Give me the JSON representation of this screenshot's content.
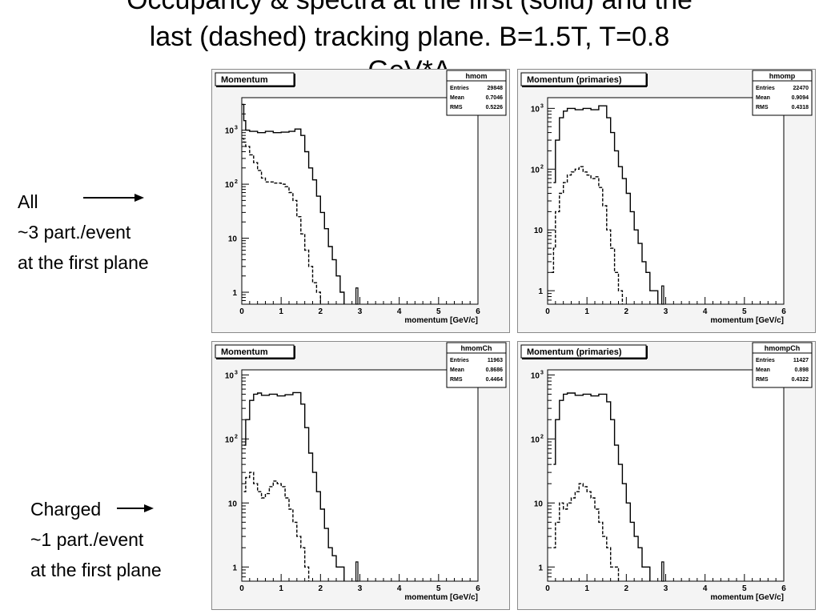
{
  "title_lines": [
    "Occupancy & spectra at the first (solid) and the",
    "last (dashed) tracking plane. B=1.5T, T=0.8",
    "GeV*A"
  ],
  "annotations": {
    "all": [
      "All",
      "~3 part./event",
      "at the first plane"
    ],
    "charged": [
      "Charged",
      "~1 part./event",
      "at the first plane"
    ]
  },
  "chart_data": [
    {
      "type": "line",
      "title": "Momentum",
      "stats": {
        "name": "hmom",
        "entries": "29848",
        "mean": "0.7046",
        "rms": "0.5226"
      },
      "xlabel": "momentum [GeV/c]",
      "xlim": [
        0,
        6
      ],
      "ylim": [
        0.6,
        4000
      ],
      "log_y": true,
      "x_ticks": [
        0,
        1,
        2,
        3,
        4,
        5,
        6
      ],
      "y_ticks": [
        1,
        10,
        100,
        1000
      ],
      "series": [
        {
          "style": "solid",
          "x": [
            0,
            0.05,
            0.1,
            0.2,
            0.4,
            0.6,
            0.8,
            1.0,
            1.2,
            1.35,
            1.5,
            1.6,
            1.7,
            1.8,
            1.9,
            2.0,
            2.1,
            2.2,
            2.3,
            2.4,
            2.5,
            2.6
          ],
          "y": [
            3000,
            1500,
            1000,
            950,
            900,
            950,
            900,
            920,
            950,
            1050,
            800,
            400,
            200,
            120,
            60,
            30,
            15,
            7,
            4,
            2,
            1,
            0
          ]
        },
        {
          "style": "dashed",
          "x": [
            0,
            0.05,
            0.1,
            0.2,
            0.3,
            0.4,
            0.5,
            0.6,
            0.8,
            1.0,
            1.1,
            1.2,
            1.3,
            1.4,
            1.5,
            1.6,
            1.7,
            1.8,
            1.9,
            2.0
          ],
          "y": [
            700,
            600,
            500,
            350,
            250,
            180,
            130,
            110,
            105,
            100,
            90,
            70,
            50,
            25,
            12,
            6,
            3,
            1.5,
            1,
            0
          ]
        }
      ]
    },
    {
      "type": "line",
      "title": "Momentum (primaries)",
      "stats": {
        "name": "hmomp",
        "entries": "22470",
        "mean": "0.9094",
        "rms": "0.4318"
      },
      "xlabel": "momentum [GeV/c]",
      "xlim": [
        0,
        6
      ],
      "ylim": [
        0.6,
        1500
      ],
      "log_y": true,
      "x_ticks": [
        0,
        1,
        2,
        3,
        4,
        5,
        6
      ],
      "y_ticks": [
        1,
        10,
        100,
        1000
      ],
      "series": [
        {
          "style": "solid",
          "x": [
            0.15,
            0.2,
            0.3,
            0.4,
            0.5,
            0.7,
            0.9,
            1.1,
            1.3,
            1.5,
            1.6,
            1.7,
            1.8,
            1.9,
            2.0,
            2.1,
            2.2,
            2.3,
            2.4,
            2.5,
            2.6,
            2.7,
            2.8
          ],
          "y": [
            60,
            300,
            700,
            900,
            1000,
            950,
            1000,
            950,
            1100,
            700,
            400,
            200,
            110,
            70,
            40,
            20,
            10,
            6,
            3,
            2,
            1,
            1,
            0
          ]
        },
        {
          "style": "dashed",
          "x": [
            0.1,
            0.15,
            0.2,
            0.3,
            0.4,
            0.5,
            0.6,
            0.7,
            0.8,
            0.9,
            1.0,
            1.1,
            1.2,
            1.3,
            1.4,
            1.5,
            1.6,
            1.7,
            1.8,
            1.9
          ],
          "y": [
            2,
            5,
            20,
            40,
            60,
            80,
            90,
            100,
            110,
            90,
            80,
            70,
            75,
            50,
            25,
            10,
            5,
            2,
            1,
            0
          ]
        }
      ]
    },
    {
      "type": "line",
      "title": "Momentum",
      "stats": {
        "name": "hmomCh",
        "entries": "11963",
        "mean": "0.8686",
        "rms": "0.4464"
      },
      "xlabel": "momentum [GeV/c]",
      "xlim": [
        0,
        6
      ],
      "ylim": [
        0.6,
        1200
      ],
      "log_y": true,
      "x_ticks": [
        0,
        1,
        2,
        3,
        4,
        5,
        6
      ],
      "y_ticks": [
        1,
        10,
        100,
        1000
      ],
      "series": [
        {
          "style": "solid",
          "x": [
            0.05,
            0.1,
            0.2,
            0.3,
            0.4,
            0.5,
            0.7,
            0.9,
            1.1,
            1.3,
            1.5,
            1.6,
            1.7,
            1.8,
            1.9,
            2.0,
            2.1,
            2.2,
            2.3,
            2.4,
            2.5,
            2.6
          ],
          "y": [
            80,
            200,
            400,
            500,
            520,
            480,
            500,
            470,
            490,
            530,
            350,
            150,
            60,
            30,
            15,
            8,
            4,
            2,
            1.5,
            1,
            1,
            0
          ]
        },
        {
          "style": "dashed",
          "x": [
            0.05,
            0.1,
            0.2,
            0.3,
            0.4,
            0.5,
            0.6,
            0.7,
            0.8,
            0.9,
            1.0,
            1.1,
            1.2,
            1.3,
            1.4,
            1.5,
            1.6,
            1.7
          ],
          "y": [
            15,
            25,
            30,
            20,
            15,
            12,
            14,
            18,
            22,
            20,
            18,
            12,
            8,
            5,
            3,
            2,
            1,
            0
          ]
        }
      ]
    },
    {
      "type": "line",
      "title": "Momentum (primaries)",
      "stats": {
        "name": "hmompCh",
        "entries": "11427",
        "mean": "0.898",
        "rms": "0.4322"
      },
      "xlabel": "momentum [GeV/c]",
      "xlim": [
        0,
        6
      ],
      "ylim": [
        0.6,
        1200
      ],
      "log_y": true,
      "x_ticks": [
        0,
        1,
        2,
        3,
        4,
        5,
        6
      ],
      "y_ticks": [
        1,
        10,
        100,
        1000
      ],
      "series": [
        {
          "style": "solid",
          "x": [
            0.15,
            0.2,
            0.3,
            0.4,
            0.5,
            0.7,
            0.9,
            1.1,
            1.3,
            1.5,
            1.6,
            1.7,
            1.8,
            1.9,
            2.0,
            2.1,
            2.2,
            2.3,
            2.4,
            2.5,
            2.6
          ],
          "y": [
            40,
            200,
            400,
            500,
            520,
            480,
            500,
            470,
            500,
            380,
            200,
            80,
            40,
            20,
            10,
            5,
            3,
            2,
            1,
            1,
            0
          ]
        },
        {
          "style": "dashed",
          "x": [
            0.15,
            0.2,
            0.3,
            0.4,
            0.5,
            0.6,
            0.7,
            0.8,
            0.9,
            1.0,
            1.1,
            1.2,
            1.3,
            1.4,
            1.5,
            1.6,
            1.7,
            1.8
          ],
          "y": [
            2,
            5,
            10,
            8,
            10,
            12,
            15,
            20,
            18,
            15,
            12,
            8,
            5,
            3,
            2,
            1,
            1,
            0
          ]
        }
      ]
    }
  ]
}
